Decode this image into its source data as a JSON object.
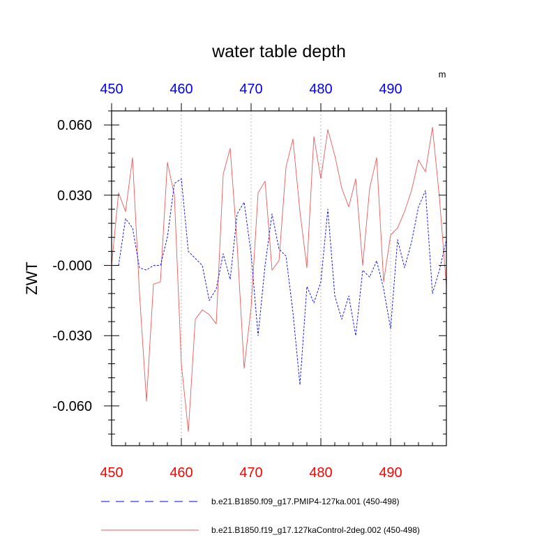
{
  "chart_data": {
    "type": "line",
    "title": "water table depth",
    "ylabel": "ZWT",
    "units_label": "m",
    "xlim": [
      450,
      498
    ],
    "ylim": [
      -0.077,
      0.066
    ],
    "x_ticks": [
      450,
      460,
      470,
      480,
      490
    ],
    "x_tick_labels": [
      "450",
      "460",
      "470",
      "480",
      "490"
    ],
    "y_ticks": [
      0.06,
      0.03,
      0.0,
      -0.03,
      -0.06
    ],
    "y_tick_labels": [
      "0.060",
      "0.030",
      "-0.000",
      "-0.030",
      "-0.060"
    ],
    "x_minor_step": 2,
    "y_minor_step": 0.006,
    "vertical_gridlines": true,
    "top_axis_color": "#0000ff",
    "bottom_axis_color": "#ff0000",
    "series": [
      {
        "name": "b.e21.B1850.f09_g17.PMIP4-127ka.001 (450-498)",
        "color": "#0000ff",
        "dash": "dashed",
        "x": [
          450,
          451,
          452,
          453,
          454,
          455,
          456,
          457,
          458,
          459,
          460,
          461,
          462,
          463,
          464,
          465,
          466,
          467,
          468,
          469,
          470,
          471,
          472,
          473,
          474,
          475,
          476,
          477,
          478,
          479,
          480,
          481,
          482,
          483,
          484,
          485,
          486,
          487,
          488,
          489,
          490,
          491,
          492,
          493,
          494,
          495,
          496,
          497,
          498
        ],
        "values": [
          0.0,
          0.0,
          0.02,
          0.016,
          -0.001,
          -0.002,
          0.0,
          0.0,
          0.012,
          0.035,
          0.037,
          0.006,
          0.003,
          0.0,
          -0.015,
          -0.01,
          0.005,
          -0.006,
          0.022,
          0.027,
          0.005,
          -0.03,
          0.0,
          0.022,
          0.007,
          0.004,
          -0.02,
          -0.051,
          -0.009,
          -0.016,
          -0.007,
          0.024,
          -0.013,
          -0.023,
          -0.013,
          -0.03,
          -0.002,
          -0.005,
          0.002,
          -0.01,
          -0.027,
          0.011,
          -0.001,
          0.01,
          0.025,
          0.032,
          -0.012,
          -0.002,
          0.011
        ]
      },
      {
        "name": "b.e21.B1850.f19_g17.127kaControl-2deg.002 (450-498)",
        "color": "#e85a5a",
        "dash": "solid",
        "x": [
          450,
          451,
          452,
          453,
          454,
          455,
          456,
          457,
          458,
          459,
          460,
          461,
          462,
          463,
          464,
          465,
          466,
          467,
          468,
          469,
          470,
          471,
          472,
          473,
          474,
          475,
          476,
          477,
          478,
          479,
          480,
          481,
          482,
          483,
          484,
          485,
          486,
          487,
          488,
          489,
          490,
          491,
          492,
          493,
          494,
          495,
          496,
          497,
          498
        ],
        "values": [
          0.0,
          0.031,
          0.023,
          0.046,
          -0.012,
          -0.058,
          -0.008,
          -0.007,
          0.044,
          0.03,
          -0.042,
          -0.071,
          -0.023,
          -0.019,
          -0.021,
          -0.025,
          0.039,
          0.05,
          0.009,
          -0.044,
          -0.018,
          0.031,
          0.036,
          -0.002,
          0.002,
          0.042,
          0.054,
          0.023,
          -0.001,
          0.055,
          0.037,
          0.058,
          0.047,
          0.033,
          0.025,
          0.037,
          0.0,
          0.033,
          0.046,
          -0.007,
          0.013,
          0.016,
          0.023,
          0.032,
          0.045,
          0.04,
          0.059,
          0.029,
          -0.009
        ]
      }
    ]
  }
}
